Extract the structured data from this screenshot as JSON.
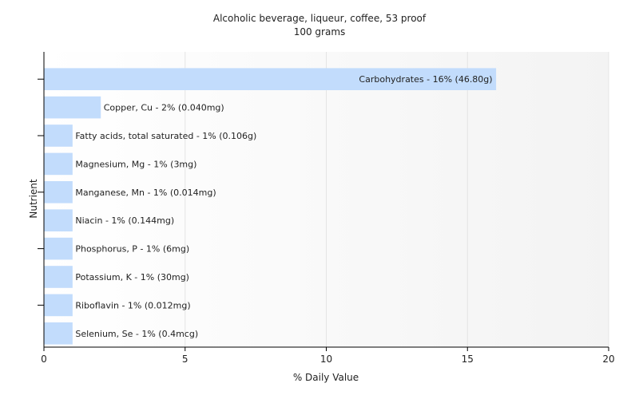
{
  "chart_data": {
    "type": "bar",
    "orientation": "horizontal",
    "title": "Alcoholic beverage, liqueur, coffee, 53 proof",
    "subtitle": "100 grams",
    "xlabel": "% Daily Value",
    "ylabel": "Nutrient",
    "xlim": [
      0,
      20
    ],
    "xticks": [
      0,
      5,
      10,
      15,
      20
    ],
    "grid": true,
    "bar_color": "#c2dcfc",
    "categories": [
      "Carbohydrates",
      "Copper, Cu",
      "Fatty acids, total saturated",
      "Magnesium, Mg",
      "Manganese, Mn",
      "Niacin",
      "Phosphorus, P",
      "Potassium, K",
      "Riboflavin",
      "Selenium, Se"
    ],
    "values": [
      16,
      2,
      1,
      1,
      1,
      1,
      1,
      1,
      1,
      1
    ],
    "data_labels": [
      "Carbohydrates - 16% (46.80g)",
      "Copper, Cu - 2% (0.040mg)",
      "Fatty acids, total saturated - 1% (0.106g)",
      "Magnesium, Mg - 1% (3mg)",
      "Manganese, Mn - 1% (0.014mg)",
      "Niacin - 1% (0.144mg)",
      "Phosphorus, P - 1% (6mg)",
      "Potassium, K - 1% (30mg)",
      "Riboflavin - 1% (0.012mg)",
      "Selenium, Se - 1% (0.4mcg)"
    ]
  }
}
